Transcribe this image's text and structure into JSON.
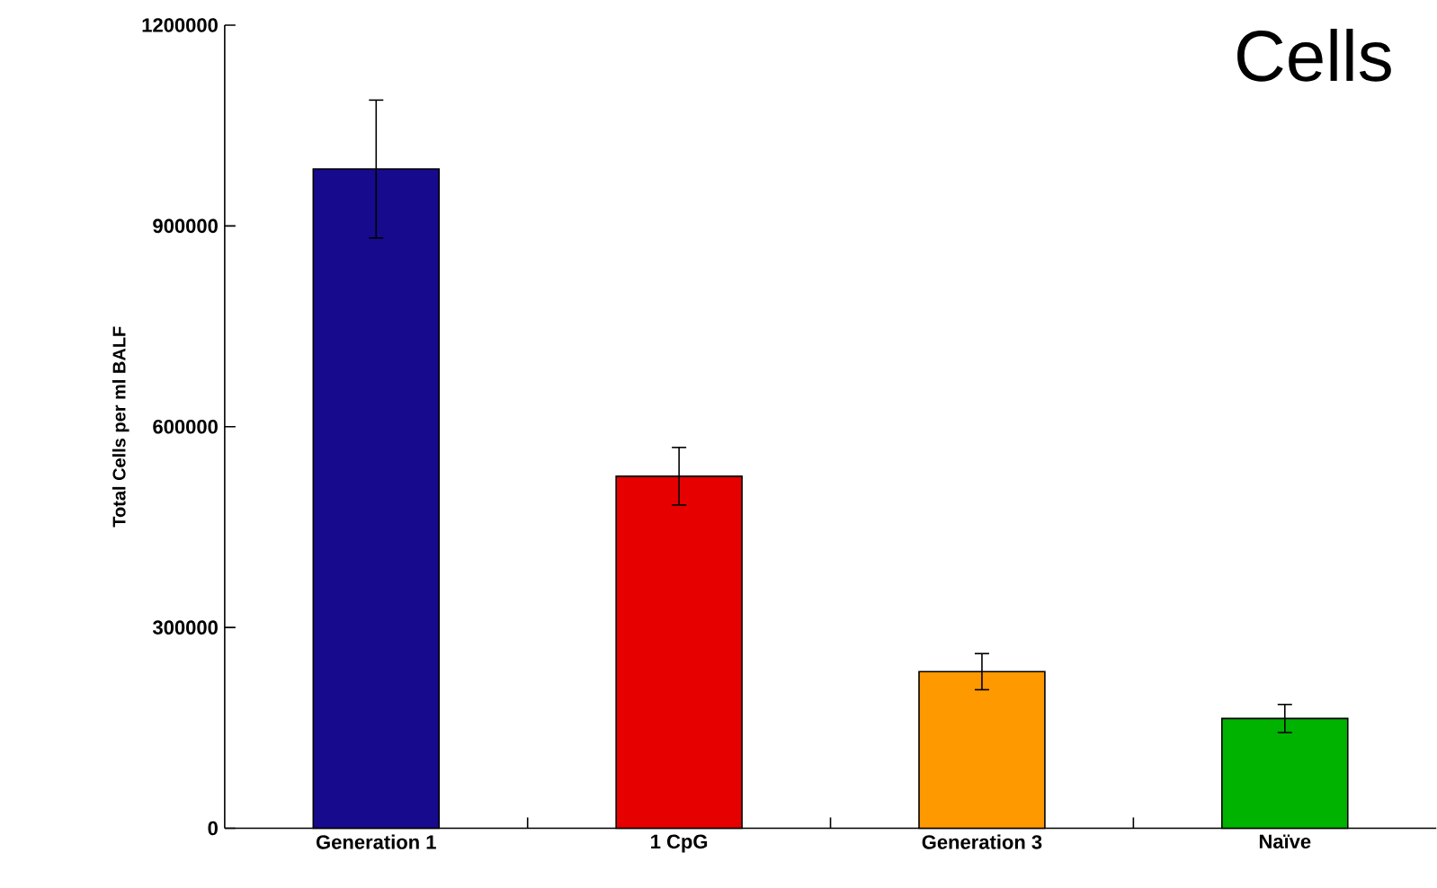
{
  "chart_data": {
    "type": "bar",
    "title": "Cells",
    "ylabel": "Total Cells per ml BALF",
    "categories": [
      "Generation 1",
      "1 CpG",
      "Generation 3",
      "Naïve"
    ],
    "values": [
      985000,
      526000,
      234000,
      164000
    ],
    "errors": [
      103000,
      43000,
      27000,
      21000
    ],
    "colors": [
      "#170a8c",
      "#e60000",
      "#ff9900",
      "#00b300"
    ],
    "ylim": [
      0,
      1200000
    ],
    "yticks": [
      0,
      300000,
      600000,
      900000,
      1200000
    ],
    "grid": false
  }
}
